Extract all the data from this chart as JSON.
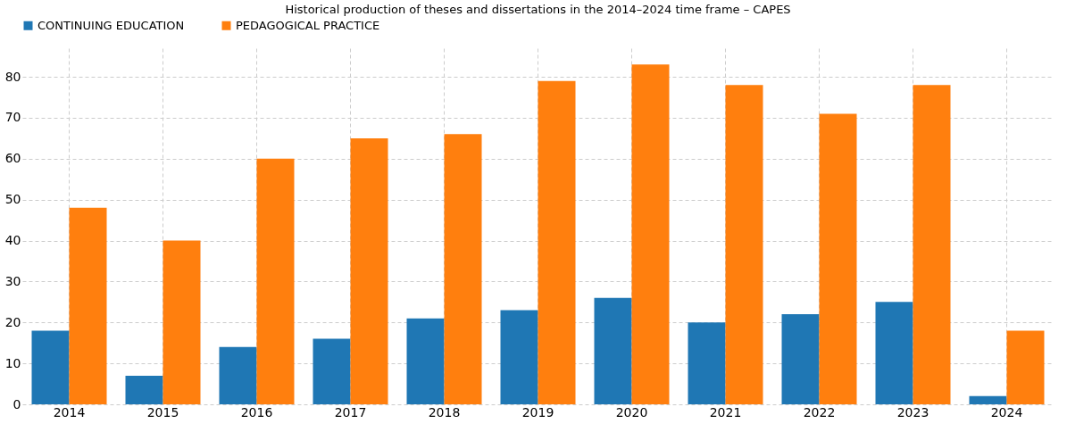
{
  "chart_data": {
    "type": "bar",
    "title": "Historical production of theses and dissertations in the 2014–2024 time frame – CAPES",
    "categories": [
      "2014",
      "2015",
      "2016",
      "2017",
      "2018",
      "2019",
      "2020",
      "2021",
      "2022",
      "2023",
      "2024"
    ],
    "series": [
      {
        "name": "CONTINUING EDUCATION",
        "color": "#1f77b4",
        "values": [
          18,
          7,
          14,
          16,
          21,
          23,
          26,
          20,
          22,
          25,
          2
        ]
      },
      {
        "name": "PEDAGOGICAL PRACTICE",
        "color": "#ff7f0e",
        "values": [
          48,
          40,
          60,
          65,
          66,
          79,
          83,
          78,
          71,
          78,
          18
        ]
      }
    ],
    "ylim": [
      0,
      87
    ],
    "yticks": [
      0,
      10,
      20,
      30,
      40,
      50,
      60,
      70,
      80
    ],
    "grid": true,
    "legend": "top"
  }
}
